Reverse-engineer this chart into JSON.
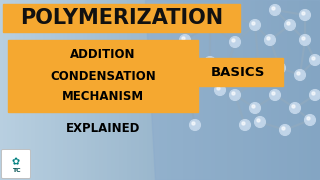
{
  "title": "POLYMERIZATION",
  "title_fontsize": 15,
  "title_color": "#111111",
  "title_bg_color": "#F5A830",
  "bg_color_left": "#b8cfe0",
  "bg_color_right": "#7a9db8",
  "main_box_color": "#F5A830",
  "basics_box_color": "#F5A830",
  "main_lines": [
    "ADDITION",
    "CONDENSATION",
    "MECHANISM"
  ],
  "main_lines_fontsize": 8.5,
  "explained_text": "EXPLAINED",
  "explained_fontsize": 8.5,
  "basics_text": "BASICS",
  "basics_fontsize": 9.5,
  "mol_sphere_color": "#c0d4e8",
  "mol_sphere_edge": "#8aaccc",
  "mol_rod_color": "#90aac0",
  "mol_bg_color": "#8caccc"
}
